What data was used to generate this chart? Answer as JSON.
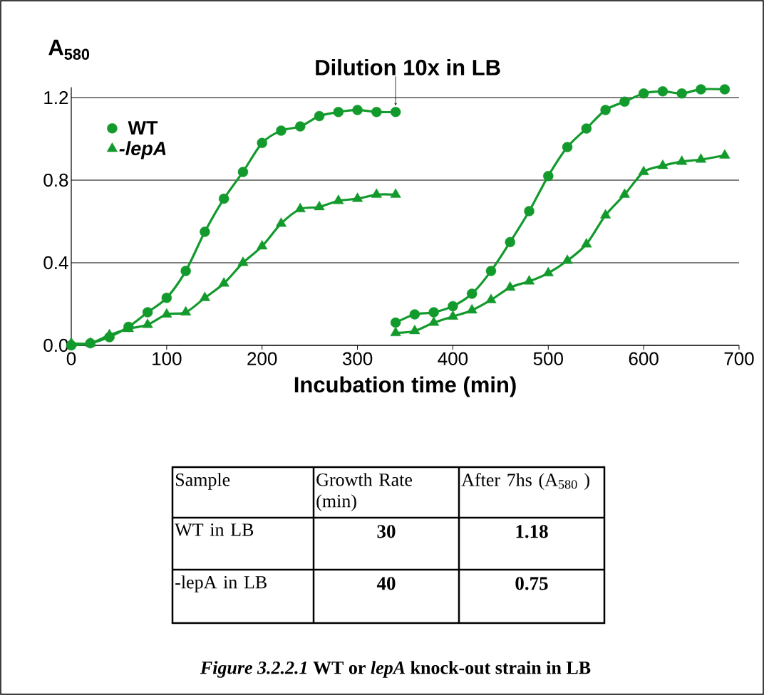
{
  "chart_data": [
    {
      "type": "line",
      "ylabel": "A$_{580}$",
      "xlabel": "Incubation time (min)",
      "series": [
        {
          "name": "WT",
          "color": "#139a2c",
          "marker": "circle",
          "x": [
            0,
            20,
            40,
            60,
            80,
            100,
            120,
            140,
            160,
            180,
            200,
            220,
            240,
            260,
            280,
            300,
            320,
            340
          ],
          "values": [
            0.0,
            0.01,
            0.04,
            0.09,
            0.16,
            0.23,
            0.36,
            0.55,
            0.71,
            0.84,
            0.98,
            1.04,
            1.06,
            1.11,
            1.13,
            1.14,
            1.13,
            1.13
          ]
        },
        {
          "name": "*-lepA*",
          "color": "#139a2c",
          "marker": "triangle",
          "x": [
            0,
            20,
            40,
            60,
            80,
            100,
            120,
            140,
            160,
            180,
            200,
            220,
            240,
            260,
            280,
            300,
            320,
            340
          ],
          "values": [
            0.01,
            0.01,
            0.05,
            0.08,
            0.1,
            0.15,
            0.16,
            0.23,
            0.3,
            0.4,
            0.48,
            0.59,
            0.66,
            0.67,
            0.7,
            0.71,
            0.73,
            0.73
          ]
        },
        {
          "color": "#139a2c",
          "marker": "circle",
          "x": [
            340,
            360,
            380,
            400,
            420,
            440,
            460,
            480,
            500,
            520,
            540,
            560,
            580,
            600,
            620,
            640,
            660,
            685
          ],
          "values": [
            0.11,
            0.15,
            0.16,
            0.19,
            0.25,
            0.36,
            0.5,
            0.65,
            0.82,
            0.96,
            1.05,
            1.14,
            1.18,
            1.22,
            1.23,
            1.22,
            1.24,
            1.24
          ]
        },
        {
          "color": "#139a2c",
          "marker": "triangle",
          "x": [
            340,
            360,
            380,
            400,
            420,
            440,
            460,
            480,
            500,
            520,
            540,
            560,
            580,
            600,
            620,
            640,
            660,
            685
          ],
          "values": [
            0.06,
            0.07,
            0.11,
            0.14,
            0.17,
            0.22,
            0.28,
            0.31,
            0.35,
            0.41,
            0.49,
            0.63,
            0.73,
            0.84,
            0.87,
            0.89,
            0.9,
            0.92
          ]
        }
      ],
      "xlim": [
        0,
        700
      ],
      "ylim": [
        0,
        1.25
      ],
      "xticks": [
        0,
        100,
        200,
        300,
        400,
        500,
        600,
        700
      ],
      "yticks": [
        {
          "value": 0,
          "label": "0.0"
        },
        {
          "value": 0.4,
          "label": "0.4"
        },
        {
          "value": 0.8,
          "label": "0.8"
        },
        {
          "value": 1.2,
          "label": "1.2"
        }
      ],
      "grid": "y",
      "legend": "top left",
      "annotations": [
        {
          "text": "Dilution 10x  in LB",
          "x": 340,
          "y": 1.13
        }
      ]
    },
    {
      "type": "other",
      "annotations": [
        "Sample",
        "Growth Rate (min)",
        "After 7hs (A$_{580}$ )",
        "WT in LB",
        "30",
        "1.18",
        "-lepA in LB",
        "40",
        "0.75",
        "*Figure 3.2.2.1* WT or *lepA* knock-out strain in LB"
      ]
    }
  ]
}
